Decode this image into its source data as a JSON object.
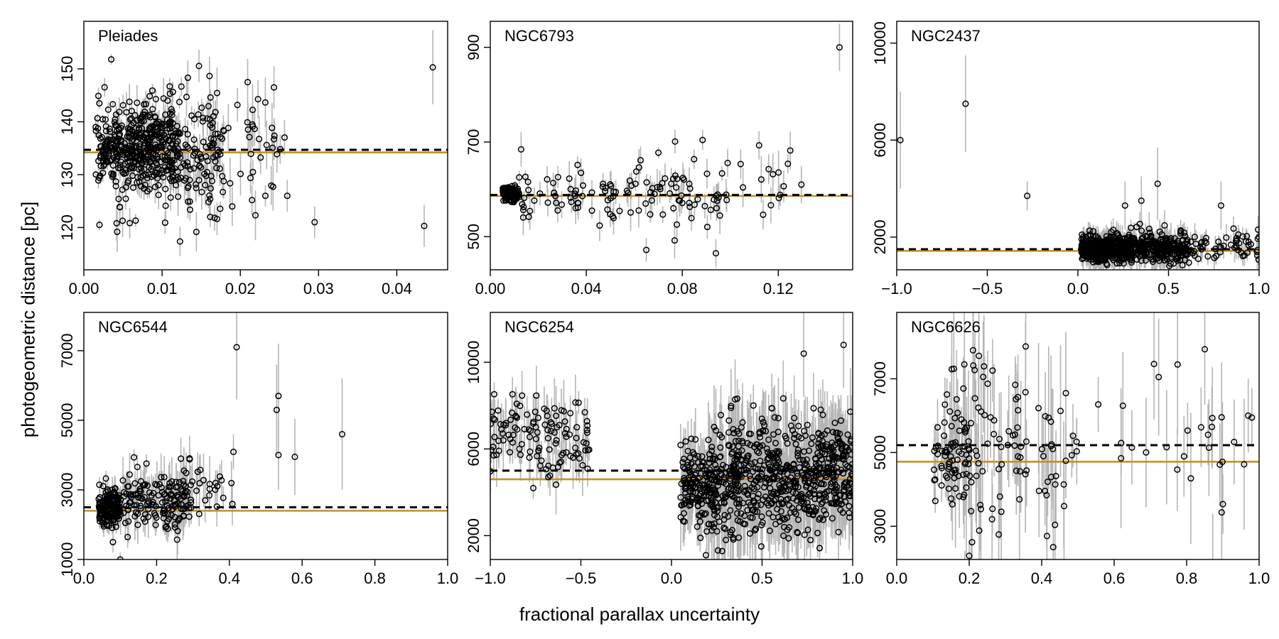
{
  "figure": {
    "xlabel": "fractional parallax uncertainty",
    "ylabel": "photogeometric distance [pc]"
  },
  "colors": {
    "point": "#000000",
    "errorbar": "#b5b5b5",
    "dashed": "#000000",
    "solid": "#c8901f"
  },
  "chart_data": [
    {
      "type": "scatter",
      "title": "Pleiades",
      "xlim": [
        0,
        0.0465
      ],
      "ylim": [
        112,
        159
      ],
      "xticks": [
        0.0,
        0.01,
        0.02,
        0.03,
        0.04
      ],
      "xticklabels": [
        "0.00",
        "0.01",
        "0.02",
        "0.03",
        "0.04"
      ],
      "yticks": [
        120,
        130,
        140,
        150
      ],
      "yticklabels": [
        "120",
        "130",
        "140",
        "150"
      ],
      "ref_dashed": 134.7,
      "ref_solid": 134.2,
      "clusters": [
        {
          "n": 300,
          "x": [
            0.0015,
            0.012
          ],
          "ymean": 135,
          "ysd": 3.5,
          "err": [
            0.5,
            2
          ]
        },
        {
          "n": 250,
          "x": [
            0.004,
            0.018
          ],
          "ymean": 134,
          "ysd": 6,
          "err": [
            1,
            4
          ]
        },
        {
          "n": 40,
          "x": [
            0.016,
            0.026
          ],
          "ymean": 135,
          "ysd": 5,
          "err": [
            2,
            5
          ]
        }
      ],
      "outliers": [
        [
          0.0446,
          150.3,
          7
        ],
        [
          0.0435,
          120.3,
          4
        ],
        [
          0.0295,
          121,
          3
        ],
        [
          0.026,
          126,
          3
        ],
        [
          0.0243,
          146.5,
          4
        ],
        [
          0.0243,
          136.7,
          4
        ],
        [
          0.0035,
          151.8,
          1
        ],
        [
          0.0232,
          126,
          2
        ],
        [
          0.002,
          120.5,
          1
        ]
      ]
    },
    {
      "type": "scatter",
      "title": "NGC6793",
      "xlim": [
        0,
        0.151
      ],
      "ylim": [
        430,
        955
      ],
      "xticks": [
        0.0,
        0.04,
        0.08,
        0.12
      ],
      "xticklabels": [
        "0.00",
        "0.04",
        "0.08",
        "0.12"
      ],
      "yticks": [
        500,
        700,
        900
      ],
      "yticklabels": [
        "500",
        "700",
        "900"
      ],
      "ref_dashed": 588,
      "ref_solid": 586,
      "clusters": [
        {
          "n": 70,
          "x": [
            0.005,
            0.012
          ],
          "ymean": 592,
          "ysd": 10,
          "err": [
            3,
            10
          ]
        },
        {
          "n": 120,
          "x": [
            0.012,
            0.1
          ],
          "ymean": 590,
          "ysd": 35,
          "err": [
            10,
            40
          ]
        },
        {
          "n": 12,
          "x": [
            0.1,
            0.13
          ],
          "ymean": 620,
          "ysd": 40,
          "err": [
            20,
            50
          ]
        }
      ],
      "outliers": [
        [
          0.1455,
          900,
          50
        ],
        [
          0.112,
          693,
          30
        ],
        [
          0.125,
          682,
          40
        ],
        [
          0.124,
          654,
          20
        ],
        [
          0.094,
          465,
          30
        ],
        [
          0.065,
          472,
          25
        ],
        [
          0.077,
          701,
          25
        ]
      ]
    },
    {
      "type": "scatter",
      "title": "NGC2437",
      "xlim": [
        -1,
        1
      ],
      "ylim": [
        650,
        10900
      ],
      "xticks": [
        -1.0,
        -0.5,
        0.0,
        0.5,
        1.0
      ],
      "xticklabels": [
        "−1.0",
        "−0.5",
        "0.0",
        "0.5",
        "1.0"
      ],
      "yticks": [
        2000,
        6000,
        10000
      ],
      "yticklabels": [
        "2000",
        "6000",
        "10000"
      ],
      "ref_dashed": 1500,
      "ref_solid": 1430,
      "clusters": [
        {
          "n": 500,
          "x": [
            0.02,
            0.3
          ],
          "ymean": 1500,
          "ysd": 250,
          "err": [
            100,
            600
          ]
        },
        {
          "n": 250,
          "x": [
            0.3,
            0.6
          ],
          "ymean": 1550,
          "ysd": 300,
          "err": [
            150,
            700
          ]
        },
        {
          "n": 60,
          "x": [
            0.6,
            1.0
          ],
          "ymean": 1550,
          "ysd": 350,
          "err": [
            200,
            600
          ]
        }
      ],
      "outliers": [
        [
          -0.98,
          6000,
          2000
        ],
        [
          -0.62,
          7500,
          2000
        ],
        [
          -0.28,
          3700,
          600
        ],
        [
          0.44,
          4200,
          1500
        ],
        [
          0.79,
          3300,
          1000
        ],
        [
          0.35,
          3500,
          1000
        ],
        [
          0.26,
          3300,
          1000
        ]
      ]
    },
    {
      "type": "scatter",
      "title": "NGC6544",
      "xlim": [
        0,
        1
      ],
      "ylim": [
        1000,
        8100
      ],
      "xticks": [
        0.0,
        0.2,
        0.4,
        0.6,
        0.8,
        1.0
      ],
      "xticklabels": [
        "0.0",
        "0.2",
        "0.4",
        "0.6",
        "0.8",
        "1.0"
      ],
      "yticks": [
        1000,
        3000,
        5000,
        7000
      ],
      "yticklabels": [
        "1000",
        "3000",
        "5000",
        "7000"
      ],
      "ref_dashed": 2500,
      "ref_solid": 2400,
      "clusters": [
        {
          "n": 150,
          "x": [
            0.04,
            0.1
          ],
          "ymean": 2500,
          "ysd": 250,
          "err": [
            100,
            400
          ]
        },
        {
          "n": 150,
          "x": [
            0.1,
            0.3
          ],
          "ymean": 2650,
          "ysd": 450,
          "err": [
            200,
            700
          ]
        },
        {
          "n": 30,
          "x": [
            0.25,
            0.42
          ],
          "ymean": 3300,
          "ysd": 550,
          "err": [
            300,
            900
          ]
        }
      ],
      "outliers": [
        [
          0.42,
          7100,
          1500
        ],
        [
          0.535,
          5700,
          1500
        ],
        [
          0.53,
          5300,
          1300
        ],
        [
          0.535,
          4000,
          1000
        ],
        [
          0.58,
          3950,
          1100
        ],
        [
          0.71,
          4600,
          1600
        ],
        [
          0.1,
          1000,
          200
        ],
        [
          0.08,
          1500,
          300
        ]
      ]
    },
    {
      "type": "scatter",
      "title": "NGC6254",
      "xlim": [
        -1,
        1
      ],
      "ylim": [
        900,
        12300
      ],
      "xticks": [
        -1.0,
        -0.5,
        0.0,
        0.5,
        1.0
      ],
      "xticklabels": [
        "−1.0",
        "−0.5",
        "0.0",
        "0.5",
        "1.0"
      ],
      "yticks": [
        2000,
        6000,
        10000
      ],
      "yticklabels": [
        "2000",
        "6000",
        "10000"
      ],
      "ref_dashed": 5000,
      "ref_solid": 4600,
      "clusters": [
        {
          "n": 120,
          "x": [
            -1.0,
            -0.45
          ],
          "ymean": 6800,
          "ysd": 900,
          "err": [
            500,
            1500
          ]
        },
        {
          "n": 150,
          "x": [
            0.05,
            0.25
          ],
          "ymean": 4300,
          "ysd": 800,
          "err": [
            500,
            1600
          ]
        },
        {
          "n": 700,
          "x": [
            0.2,
            1.0
          ],
          "ymean": 4700,
          "ysd": 1300,
          "err": [
            800,
            2200
          ]
        }
      ],
      "outliers": [
        [
          0.16,
          1900,
          400
        ],
        [
          0.3,
          1800,
          400
        ],
        [
          0.19,
          1100,
          300
        ],
        [
          0.95,
          10800,
          2000
        ],
        [
          0.73,
          10400,
          2000
        ],
        [
          -0.68,
          4700,
          500
        ]
      ]
    },
    {
      "type": "scatter",
      "title": "NGC6626",
      "xlim": [
        0,
        1
      ],
      "ylim": [
        2100,
        8800
      ],
      "xticks": [
        0.0,
        0.2,
        0.4,
        0.6,
        0.8,
        1.0
      ],
      "xticklabels": [
        "0.0",
        "0.2",
        "0.4",
        "0.6",
        "0.8",
        "1.0"
      ],
      "yticks": [
        3000,
        5000,
        7000
      ],
      "yticklabels": [
        "3000",
        "5000",
        "7000"
      ],
      "ref_dashed": 5200,
      "ref_solid": 4750,
      "clusters": [
        {
          "n": 60,
          "x": [
            0.1,
            0.2
          ],
          "ymean": 5100,
          "ysd": 550,
          "err": [
            300,
            900
          ]
        },
        {
          "n": 110,
          "x": [
            0.15,
            0.5
          ],
          "ymean": 5200,
          "ysd": 1300,
          "err": [
            600,
            2000
          ]
        },
        {
          "n": 25,
          "x": [
            0.5,
            0.99
          ],
          "ymean": 5300,
          "ysd": 1300,
          "err": [
            700,
            2000
          ]
        }
      ],
      "outliers": [
        [
          0.85,
          7800,
          1500
        ],
        [
          0.97,
          6000,
          1000
        ],
        [
          0.98,
          5950,
          800
        ],
        [
          0.2,
          2200,
          400
        ],
        [
          0.9,
          3600,
          800
        ],
        [
          0.71,
          7400,
          1500
        ]
      ]
    }
  ]
}
